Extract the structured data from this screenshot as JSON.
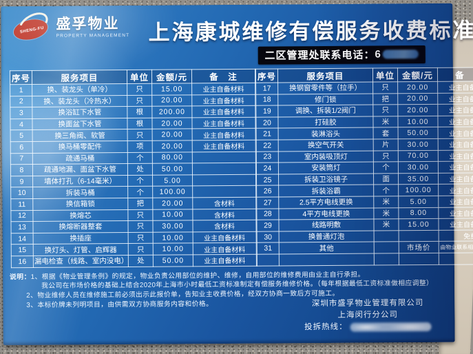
{
  "board": {
    "logo": {
      "emblem_text": "SHENG-FU",
      "brand_cn": "盛孚物业",
      "brand_en": "PROPERTY MANAGEMENT"
    },
    "title": "上海康城维修有偿服务收费标准",
    "contact": {
      "label": "二区管理处联系电话：",
      "visible_digit": "6"
    },
    "columns": [
      "序号",
      "服务项目",
      "单位",
      "金额/元",
      "备　注"
    ],
    "left_rows": [
      [
        "1",
        "换、装龙头（单冷）",
        "只",
        "15.00",
        "业主自备材料"
      ],
      [
        "2",
        "换、装龙头（冷热水）",
        "只",
        "20.00",
        "业主自备材料"
      ],
      [
        "3",
        "换浴缸下水管",
        "根",
        "200.00",
        "业主自备材料"
      ],
      [
        "4",
        "换面盆下水管",
        "根",
        "20.00",
        "业主自备材料"
      ],
      [
        "5",
        "换三角阀、软管",
        "只",
        "20.00",
        "业主自备材料"
      ],
      [
        "6",
        "换马桶零配件",
        "项",
        "20.00",
        "业主自备材料"
      ],
      [
        "7",
        "疏通马桶",
        "个",
        "80.00",
        ""
      ],
      [
        "8",
        "疏通地漏、面盆下水管",
        "处",
        "50.00",
        ""
      ],
      [
        "9",
        "墙体打孔（6-14毫米）",
        "个",
        "5.00",
        ""
      ],
      [
        "10",
        "拆装马桶",
        "个",
        "100.00",
        ""
      ],
      [
        "11",
        "换信箱锁",
        "把",
        "20.00",
        "含材料"
      ],
      [
        "12",
        "换熔芯",
        "只",
        "10.00",
        "含材料"
      ],
      [
        "13",
        "换熔断器整套",
        "只",
        "30.00",
        "含材料"
      ],
      [
        "14",
        "换插座",
        "只",
        "10.00",
        "业主自备材料"
      ],
      [
        "15",
        "换灯头、灯管、启辉器",
        "只",
        "10.00",
        "业主自备材料"
      ],
      [
        "16",
        "漏电检查（线路、室内没电）",
        "处",
        "50.00",
        "业主自备材料"
      ]
    ],
    "right_rows": [
      [
        "17",
        "换钢窗零件等（拉手）",
        "只",
        "20.00",
        "业主自备材料"
      ],
      [
        "18",
        "修门锁",
        "把",
        "20.00",
        "业主自备材料"
      ],
      [
        "19",
        "调换、拆装1/2阀门",
        "只",
        "20.00",
        "业主自备材料"
      ],
      [
        "20",
        "打硅胶",
        "米",
        "10.00",
        "业主自备材料"
      ],
      [
        "21",
        "装淋浴头",
        "套",
        "50.00",
        "业主自备材料"
      ],
      [
        "22",
        "换空气开关",
        "片",
        "30.00",
        "业主自备材料"
      ],
      [
        "23",
        "室内装吸顶灯",
        "只",
        "70.00",
        "业主自备材料"
      ],
      [
        "24",
        "安装筒灯",
        "个",
        "30.00",
        "业主自备材料"
      ],
      [
        "25",
        "拆装卫浴镜子",
        "面",
        "35.00",
        "业主自备材料"
      ],
      [
        "26",
        "拆装浴霸",
        "个",
        "100.00",
        "业主自备材料"
      ],
      [
        "27",
        "2.5平方电线更换",
        "米",
        "5.00",
        "业主自备材料"
      ],
      [
        "28",
        "4平方电线更换",
        "米",
        "8.00",
        "业主自备材料"
      ],
      [
        "29",
        "线路明敷",
        "米",
        "15.00",
        "业主自备材料"
      ],
      [
        "30",
        "换普通灯泡",
        "",
        "",
        "免费"
      ],
      [
        "31",
        "其他",
        "",
        "市场价",
        "由物业联系相关维修公司"
      ],
      [
        "",
        "",
        "",
        "",
        ""
      ]
    ],
    "notes": {
      "label": "说明：",
      "lines": [
        "1、根据《物业管理条例》的规定，物业负责公用部位的维护、维修，自用部位的维修费用由业主自行承担。",
        "我公司在市场价格的基础上结合2020年上海市小时最低工资标准制定有偿服务维修价格。（每年根据最低工资标准做相应调整）",
        "2、物业维修人员在维修施工前必须出示此报价单，告知业主收费价格，经双方协商一致后方可施工。",
        "3、本标价牌未列明项目，由供需双方协商服务内容和价格。"
      ]
    },
    "company": {
      "line1": "深圳市盛孚物业管理有限公司",
      "line2": "上海闵行分公司",
      "hotline_label": "投拆热线："
    }
  },
  "colors": {
    "board_blue": "#1d5ba6",
    "board_blue_light": "#3f8fce",
    "emblem_red": "#c0392b",
    "contact_strip_bg": "#07070f",
    "text": "#ffffff",
    "wall": "#d5cbbc",
    "carpet": "#94908a"
  }
}
